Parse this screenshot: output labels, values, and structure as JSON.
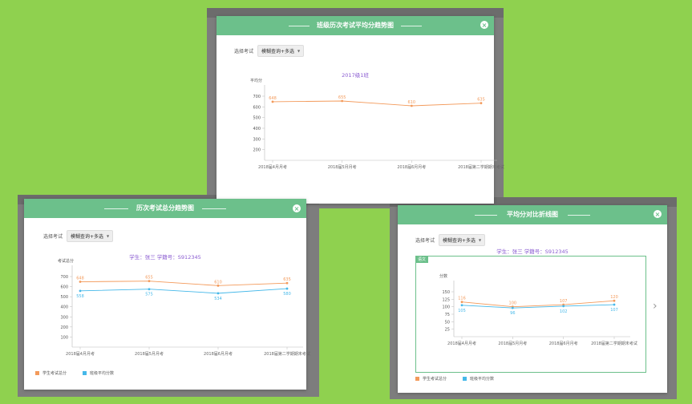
{
  "common": {
    "select_label": "选择考试",
    "select_value": "模糊查询+多选"
  },
  "dialog_class": {
    "title": "班级历次考试平均分趋势图",
    "chart_title": "2017级1班",
    "chart_data": {
      "type": "line",
      "categories": [
        "2018届4月月考",
        "2018届5月月考",
        "2018届6月月考",
        "2018届第二学期期末考试"
      ],
      "ylabel": "平均分",
      "yticks": [
        200,
        300,
        400,
        500,
        600,
        700
      ],
      "ylim": [
        100,
        750
      ],
      "series": [
        {
          "values": [
            648,
            655,
            610,
            635
          ],
          "color": "#f39a5b"
        }
      ]
    }
  },
  "dialog_total": {
    "title": "历次考试总分趋势图",
    "chart_title": "学生：张三    学籍号：S912345",
    "chart_data": {
      "type": "line",
      "categories": [
        "2018届4月月考",
        "2018届5月月考",
        "2018届6月月考",
        "2018届第二学期期末考试"
      ],
      "ylabel": "考试总分",
      "yticks": [
        100,
        200,
        300,
        400,
        500,
        600,
        700
      ],
      "ylim": [
        0,
        750
      ],
      "series": [
        {
          "name": "学生考试总分",
          "values": [
            648,
            655,
            610,
            635
          ],
          "color": "#f39a5b"
        },
        {
          "name": "班级平均分数",
          "values": [
            558,
            575,
            534,
            580
          ],
          "color": "#45b8e9"
        }
      ]
    }
  },
  "dialog_compare": {
    "title": "平均分对比折线图",
    "chart_title": "学生：张三    学籍号：S912345",
    "badge": "语文",
    "chart_data": {
      "type": "line",
      "categories": [
        "2018届4月月考",
        "2018届5月月考",
        "2018届6月月考",
        "2018届第二学期期末考试"
      ],
      "ylabel": "分数",
      "yticks": [
        25,
        50,
        75,
        100,
        125,
        150
      ],
      "ylim": [
        0,
        165
      ],
      "series": [
        {
          "name": "学生考试总分",
          "values": [
            116,
            100,
            107,
            120
          ],
          "color": "#f39a5b"
        },
        {
          "name": "班级平均分数",
          "values": [
            105,
            96,
            102,
            107
          ],
          "color": "#45b8e9"
        }
      ]
    }
  }
}
